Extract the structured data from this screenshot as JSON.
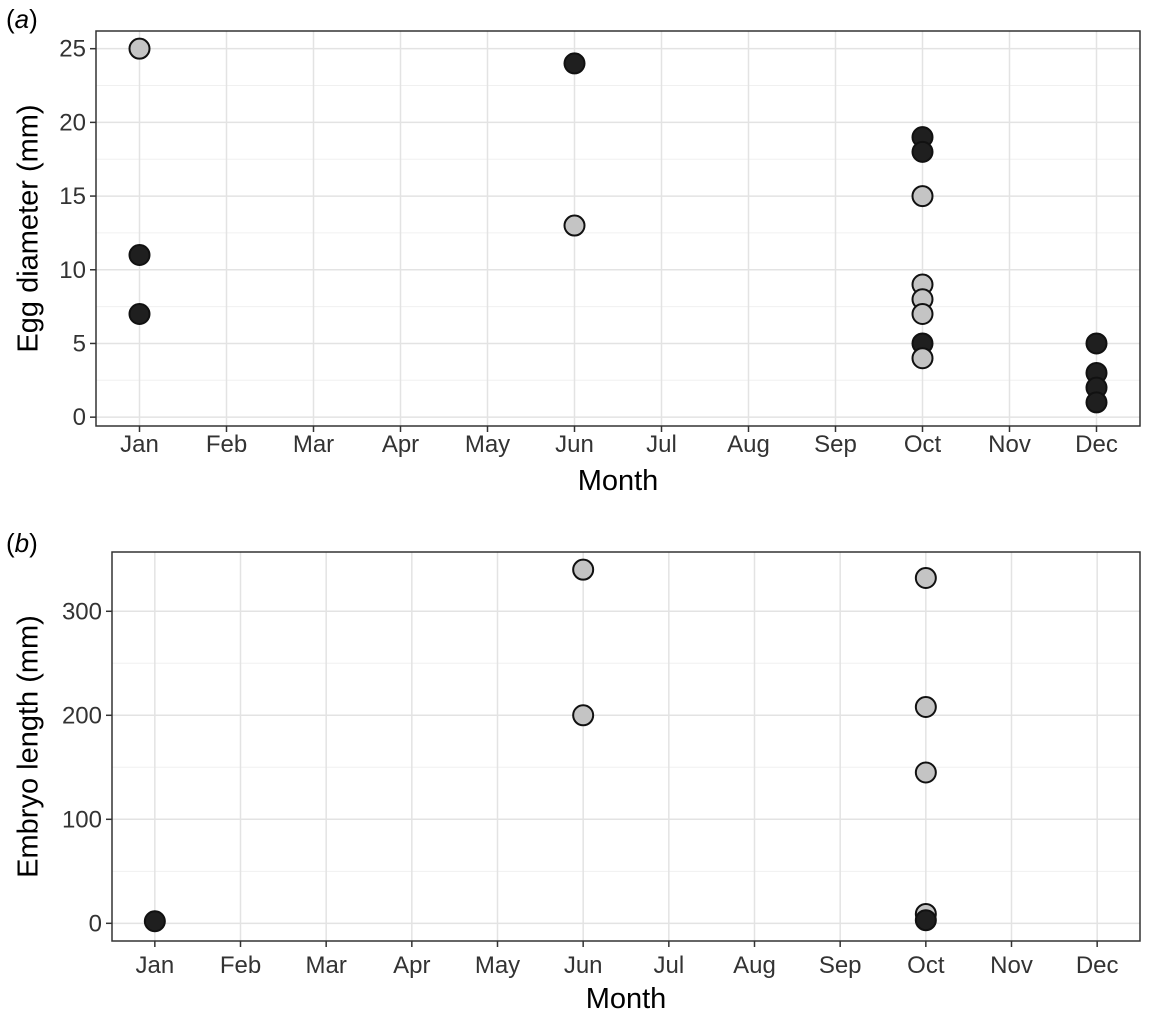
{
  "chart_data": [
    {
      "type": "scatter",
      "panel_label": "a",
      "xlabel": "Month",
      "ylabel": "Egg diameter (mm)",
      "categories": [
        "Jan",
        "Feb",
        "Mar",
        "Apr",
        "May",
        "Jun",
        "Jul",
        "Aug",
        "Sep",
        "Oct",
        "Nov",
        "Dec"
      ],
      "ylim": [
        -0.6,
        26.2
      ],
      "yticks": [
        0,
        5,
        10,
        15,
        20,
        25
      ],
      "grid": true,
      "colors": {
        "dark": "#1f1f1f",
        "light": "#c4c4c4",
        "outline": "#111111",
        "grid": "#e3e3e3",
        "border": "#333333"
      },
      "points": [
        {
          "x": "Jan",
          "y": 25,
          "fill": "light"
        },
        {
          "x": "Jan",
          "y": 11,
          "fill": "dark"
        },
        {
          "x": "Jan",
          "y": 7,
          "fill": "dark"
        },
        {
          "x": "Jun",
          "y": 24,
          "fill": "dark"
        },
        {
          "x": "Jun",
          "y": 13,
          "fill": "light"
        },
        {
          "x": "Oct",
          "y": 19,
          "fill": "dark"
        },
        {
          "x": "Oct",
          "y": 18,
          "fill": "dark"
        },
        {
          "x": "Oct",
          "y": 15,
          "fill": "light"
        },
        {
          "x": "Oct",
          "y": 9,
          "fill": "light"
        },
        {
          "x": "Oct",
          "y": 8,
          "fill": "light"
        },
        {
          "x": "Oct",
          "y": 7,
          "fill": "light"
        },
        {
          "x": "Oct",
          "y": 5,
          "fill": "dark"
        },
        {
          "x": "Oct",
          "y": 4,
          "fill": "light"
        },
        {
          "x": "Dec",
          "y": 5,
          "fill": "dark"
        },
        {
          "x": "Dec",
          "y": 3,
          "fill": "dark"
        },
        {
          "x": "Dec",
          "y": 2,
          "fill": "dark"
        },
        {
          "x": "Dec",
          "y": 1,
          "fill": "dark"
        }
      ]
    },
    {
      "type": "scatter",
      "panel_label": "b",
      "xlabel": "Month",
      "ylabel": "Embryo length (mm)",
      "categories": [
        "Jan",
        "Feb",
        "Mar",
        "Apr",
        "May",
        "Jun",
        "Jul",
        "Aug",
        "Sep",
        "Oct",
        "Nov",
        "Dec"
      ],
      "ylim": [
        -17,
        357
      ],
      "yticks": [
        0,
        100,
        200,
        300
      ],
      "grid": true,
      "colors": {
        "dark": "#1f1f1f",
        "light": "#c4c4c4",
        "outline": "#111111",
        "grid": "#e3e3e3",
        "border": "#333333"
      },
      "points": [
        {
          "x": "Jan",
          "y": 2,
          "fill": "dark"
        },
        {
          "x": "Jun",
          "y": 340,
          "fill": "light"
        },
        {
          "x": "Jun",
          "y": 200,
          "fill": "light"
        },
        {
          "x": "Oct",
          "y": 332,
          "fill": "light"
        },
        {
          "x": "Oct",
          "y": 208,
          "fill": "light"
        },
        {
          "x": "Oct",
          "y": 145,
          "fill": "light"
        },
        {
          "x": "Oct",
          "y": 9,
          "fill": "light"
        },
        {
          "x": "Oct",
          "y": 3,
          "fill": "dark"
        }
      ]
    }
  ]
}
